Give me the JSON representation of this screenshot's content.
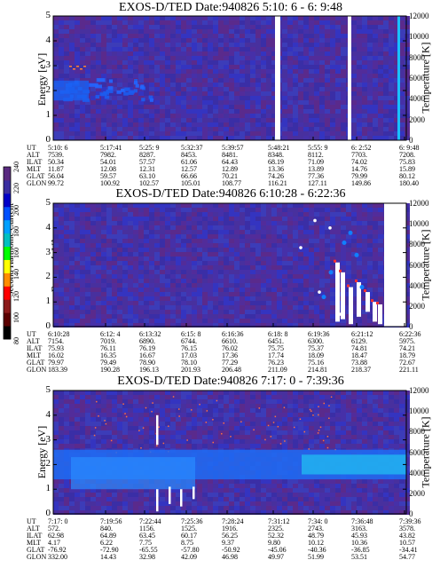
{
  "panels": [
    {
      "title": "EXOS-D/TED   Date:940826  5:10: 6 - 6: 9:48",
      "ylabel": "Energy [eV]",
      "rlabel": "Temperature [K]",
      "yticks": [
        "0",
        "1",
        "2",
        "3",
        "4",
        "5"
      ],
      "rticks": [
        "0",
        "2000",
        "4000",
        "6000",
        "8000",
        "10000",
        "12000"
      ],
      "info_names": [
        "UT",
        "ALT",
        "ILAT",
        "MLT",
        "GLAT",
        "GLON"
      ],
      "info_cols": [
        [
          "5:10: 6",
          "7539.",
          "50.34",
          "11.87",
          "56.04",
          "99.72"
        ],
        [
          "5:17:41",
          "7982.",
          "54.01",
          "12.08",
          "59.57",
          "100.92"
        ],
        [
          "5:25: 9",
          "8287.",
          "57.57",
          "12.31",
          "63.10",
          "102.57"
        ],
        [
          "5:32:37",
          "8453.",
          "61.06",
          "12.57",
          "66.66",
          "105.01"
        ],
        [
          "5:39:57",
          "8481.",
          "64.43",
          "12.89",
          "70.21",
          "108.77"
        ],
        [
          "5:48:21",
          "8348.",
          "68.19",
          "13.36",
          "74.26",
          "116.21"
        ],
        [
          "5:55: 9",
          "8112.",
          "71.09",
          "13.89",
          "77.36",
          "127.11"
        ],
        [
          "6: 2:52",
          "7703.",
          "74.02",
          "14.76",
          "79.99",
          "149.86"
        ],
        [
          "6: 9:48",
          "7208.",
          "75.83",
          "15.89",
          "80.12",
          "180.40"
        ]
      ]
    },
    {
      "title": "EXOS-D/TED   Date:940826  6:10:28 - 6:22:36",
      "ylabel": "Energy [eV]",
      "rlabel": "Temperature [K]",
      "yticks": [
        "0",
        "1",
        "2",
        "3",
        "4",
        "5"
      ],
      "rticks": [
        "0",
        "2000",
        "4000",
        "6000",
        "8000",
        "10000",
        "12000"
      ],
      "info_names": [
        "UT",
        "ALT",
        "ILAT",
        "MLT",
        "GLAT",
        "GLON"
      ],
      "info_cols": [
        [
          "6:10:28",
          "7154.",
          "75.93",
          "16.02",
          "79.97",
          "183.39"
        ],
        [
          "6:12: 4",
          "7019.",
          "76.11",
          "16.35",
          "79.49",
          "190.28"
        ],
        [
          "6:13:32",
          "6890.",
          "76.19",
          "16.67",
          "78.90",
          "196.13"
        ],
        [
          "6:15: 8",
          "6744.",
          "76.15",
          "17.03",
          "78.10",
          "201.93"
        ],
        [
          "6:16:36",
          "6610.",
          "76.02",
          "17.36",
          "77.29",
          "206.48"
        ],
        [
          "6:18: 8",
          "6451.",
          "75.75",
          "17.74",
          "76.23",
          "211.09"
        ],
        [
          "6:19:36",
          "6300.",
          "75.37",
          "18.09",
          "75.16",
          "214.81"
        ],
        [
          "6:21:12",
          "6129.",
          "74.81",
          "18.47",
          "73.88",
          "218.37"
        ],
        [
          "6:22:36",
          "5975.",
          "74.21",
          "18.79",
          "72.67",
          "221.11"
        ]
      ]
    },
    {
      "title": "EXOS-D/TED   Date:940826  7:17: 0 - 7:39:36",
      "ylabel": "Energy [eV]",
      "rlabel": "Temperature [K]",
      "yticks": [
        "0",
        "1",
        "2",
        "3",
        "4",
        "5"
      ],
      "rticks": [
        "0",
        "2000",
        "4000",
        "6000",
        "8000",
        "10000",
        "12000"
      ],
      "info_names": [
        "UT",
        "ALT",
        "ILAT",
        "MLT",
        "GLAT",
        "GLON"
      ],
      "info_cols": [
        [
          "7:17: 0",
          "572.",
          "62.98",
          "4.17",
          "-76.92",
          "332.00"
        ],
        [
          "7:19:56",
          "840.",
          "64.89",
          "6.22",
          "-72.90",
          "14.43"
        ],
        [
          "7:22:44",
          "1156.",
          "63.45",
          "7.75",
          "-65.55",
          "32.98"
        ],
        [
          "7:25:36",
          "1525.",
          "60.17",
          "8.75",
          "-57.80",
          "42.09"
        ],
        [
          "7:28:24",
          "1916.",
          "56.25",
          "9.37",
          "-50.92",
          "46.98"
        ],
        [
          "7:31:12",
          "2325.",
          "52.32",
          "9.80",
          "-45.06",
          "49.97"
        ],
        [
          "7:34: 0",
          "2743.",
          "48.79",
          "10.12",
          "-40.36",
          "51.99"
        ],
        [
          "7:36:48",
          "3163.",
          "45.93",
          "10.36",
          "-36.85",
          "53.51"
        ],
        [
          "7:39:36",
          "3578.",
          "43.82",
          "10.57",
          "-34.41",
          "54.77"
        ]
      ]
    }
  ],
  "colorbar": {
    "label": "Second Harmonic Current",
    "ticks": [
      "80",
      "100",
      "120",
      "140",
      "160",
      "180",
      "200",
      "220",
      "240"
    ],
    "colors": [
      "#000000",
      "#5a0000",
      "#8b1a1a",
      "#ff0000",
      "#ff8c00",
      "#ffff00",
      "#00ff00",
      "#00c0c0",
      "#00a0ff",
      "#0050ff",
      "#0000c8",
      "#3a2ea0",
      "#5a2a80"
    ]
  },
  "chart_data": [
    {
      "type": "heatmap",
      "title": "EXOS-D/TED   Date:940826  5:10: 6 - 6: 9:48",
      "xlabel": "UT",
      "ylabel": "Energy [eV]",
      "y2label": "Temperature [K]",
      "ylim": [
        0,
        5
      ],
      "y2lim": [
        0,
        12000
      ],
      "x_ticks": [
        "5:10: 6",
        "5:17:41",
        "5:25: 9",
        "5:32:37",
        "5:39:57",
        "5:48:21",
        "5:55: 9",
        "6: 2:52",
        "6: 9:48"
      ],
      "features": [
        {
          "kind": "band",
          "x_range": [
            "5:10: 6",
            "5:25: 9"
          ],
          "energy_range": [
            1.6,
            2.5
          ]
        },
        {
          "kind": "data_gap",
          "at": [
            "5:48:21",
            "5:55: 9"
          ]
        },
        {
          "kind": "bright_column",
          "at": "6: 9:48",
          "temperature_range": [
            0,
            12000
          ]
        }
      ]
    },
    {
      "type": "heatmap",
      "title": "EXOS-D/TED   Date:940826  6:10:28 - 6:22:36",
      "xlabel": "UT",
      "ylabel": "Energy [eV]",
      "y2label": "Temperature [K]",
      "ylim": [
        0,
        5
      ],
      "y2lim": [
        0,
        12000
      ],
      "x_ticks": [
        "6:10:28",
        "6:12: 4",
        "6:13:32",
        "6:15: 8",
        "6:16:36",
        "6:18: 8",
        "6:19:36",
        "6:21:12",
        "6:22:36"
      ],
      "features": [
        {
          "kind": "spikes",
          "x_range": [
            "6:19:36",
            "6:21:12"
          ],
          "energy_range": [
            0.2,
            2.6
          ]
        },
        {
          "kind": "data_gap",
          "at": "6:22:36"
        }
      ]
    },
    {
      "type": "heatmap",
      "title": "EXOS-D/TED   Date:940826  7:17: 0 - 7:39:36",
      "xlabel": "UT",
      "ylabel": "Energy [eV]",
      "y2label": "Temperature [K]",
      "ylim": [
        0,
        5
      ],
      "y2lim": [
        0,
        12000
      ],
      "x_ticks": [
        "7:17: 0",
        "7:19:56",
        "7:22:44",
        "7:25:36",
        "7:28:24",
        "7:31:12",
        "7:34: 0",
        "7:36:48",
        "7:39:36"
      ],
      "features": [
        {
          "kind": "band",
          "x_range": [
            "7:17: 0",
            "7:39:36"
          ],
          "energy_range": [
            1.0,
            2.8
          ]
        },
        {
          "kind": "spikes",
          "at": "7:22:44",
          "energy_range": [
            0.1,
            4.0
          ]
        }
      ]
    }
  ]
}
